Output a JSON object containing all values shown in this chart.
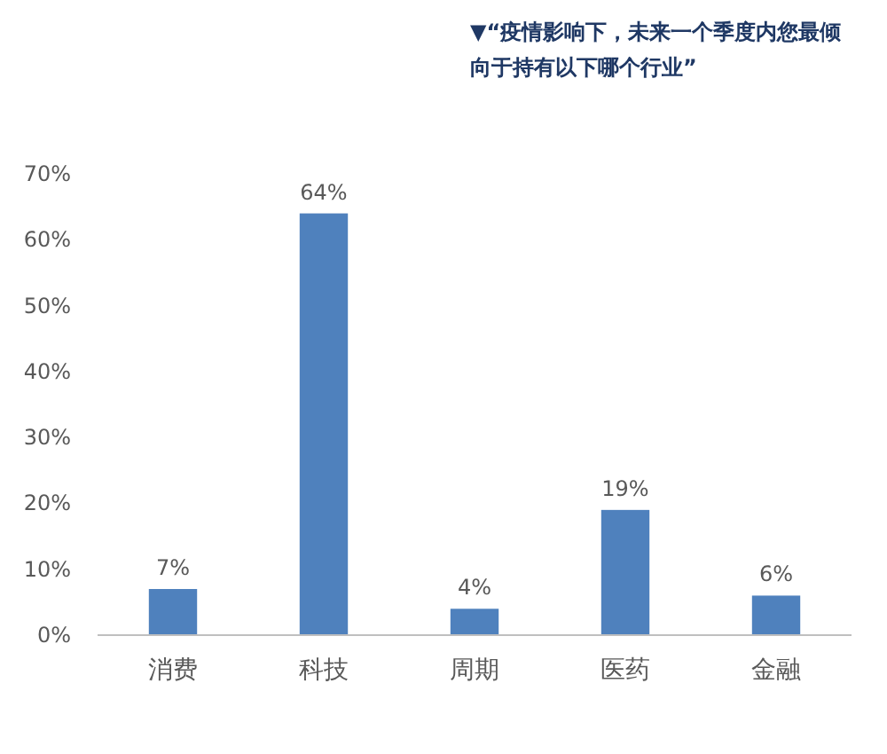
{
  "chart_data": {
    "type": "bar",
    "title": "▼“疫情影响下，未来一个季度内您最倾向于持有以下哪个行业”",
    "categories": [
      "消费",
      "科技",
      "周期",
      "医药",
      "金融"
    ],
    "values": [
      7,
      64,
      4,
      19,
      6
    ],
    "value_labels": [
      "7%",
      "64%",
      "4%",
      "19%",
      "6%"
    ],
    "color": "#4f81bd",
    "ylim": [
      0,
      70
    ],
    "yticks": [
      {
        "value": 0,
        "label": "0%"
      },
      {
        "value": 10,
        "label": "10%"
      },
      {
        "value": 20,
        "label": "20%"
      },
      {
        "value": 30,
        "label": "30%"
      },
      {
        "value": 40,
        "label": "40%"
      },
      {
        "value": 50,
        "label": "50%"
      },
      {
        "value": 60,
        "label": "60%"
      },
      {
        "value": 70,
        "label": "70%"
      }
    ],
    "grid": false
  }
}
